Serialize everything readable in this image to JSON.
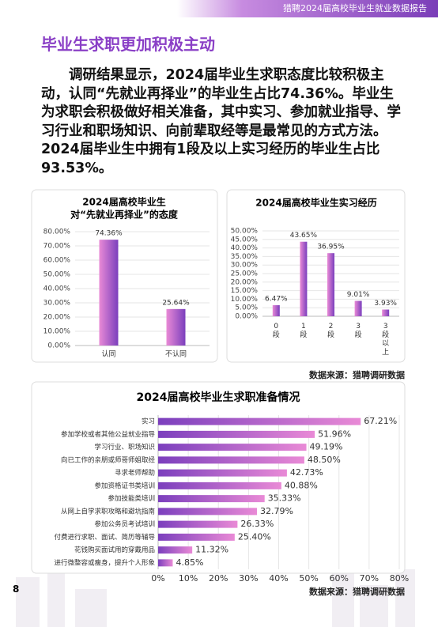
{
  "header": {
    "title": "猎聘2024届高校毕业生就业数据报告"
  },
  "section_title": "毕业生求职更加积极主动",
  "paragraph": "调研结果显示，2024届毕业生求职态度比较积极主动，认同“先就业再择业”的毕业生占比74.36%。毕业生为求职会积极做好相关准备，其中实习、参加就业指导、学习行业和职场知识、向前辈取经等是最常见的方式方法。2024届毕业生中拥有1段及以上实习经历的毕业生占比93.53%。",
  "sources": [
    "数据来源：猎聘调研数据",
    "数据来源：猎聘调研数据"
  ],
  "page_number": "8",
  "chart_data": [
    {
      "type": "bar",
      "title": "2024届高校毕业生",
      "subtitle": "对“先就业再择业”的态度",
      "categories": [
        "认同",
        "不认同"
      ],
      "values": [
        74.36,
        25.64
      ],
      "value_labels": [
        "74.36%",
        "25.64%"
      ],
      "gradient": [
        "#e98ad6",
        "#7b3fbd"
      ],
      "grid": true,
      "ylim": [
        0,
        80
      ],
      "yticks": [
        {
          "value": 0,
          "label": "0.00%"
        },
        {
          "value": 10,
          "label": "10.00%"
        },
        {
          "value": 20,
          "label": "20.00%"
        },
        {
          "value": 30,
          "label": "30.00%"
        },
        {
          "value": 40,
          "label": "40.00%"
        },
        {
          "value": 50,
          "label": "50.00%"
        },
        {
          "value": 60,
          "label": "60.00%"
        },
        {
          "value": 70,
          "label": "70.00%"
        },
        {
          "value": 80,
          "label": "80.00%"
        }
      ]
    },
    {
      "type": "bar",
      "title": "2024届高校毕业生实习经历",
      "categories": [
        "0段",
        "1段",
        "2段",
        "3段",
        "3段以上"
      ],
      "values": [
        6.47,
        43.65,
        36.95,
        9.01,
        3.93
      ],
      "value_labels": [
        "6.47%",
        "43.65%",
        "36.95%",
        "9.01%",
        "3.93%"
      ],
      "gradient": [
        "#e98ad6",
        "#7b3fbd"
      ],
      "grid": true,
      "ylim": [
        0,
        50
      ],
      "yticks": [
        {
          "value": 0,
          "label": "0.00%"
        },
        {
          "value": 5,
          "label": "5.00%"
        },
        {
          "value": 10,
          "label": "10.00%"
        },
        {
          "value": 15,
          "label": "15.00%"
        },
        {
          "value": 20,
          "label": "20.00%"
        },
        {
          "value": 25,
          "label": "25.00%"
        },
        {
          "value": 30,
          "label": "30.00%"
        },
        {
          "value": 35,
          "label": "35.00%"
        },
        {
          "value": 40,
          "label": "40.00%"
        },
        {
          "value": 45,
          "label": "45.00%"
        },
        {
          "value": 50,
          "label": "50.00%"
        }
      ]
    },
    {
      "type": "barh",
      "title": "2024届高校毕业生求职准备情况",
      "categories": [
        "实习",
        "参加学校或者其他公益就业指导",
        "学习行业、职场知识",
        "向已工作的亲朋或师哥师姐取经",
        "寻求老师帮助",
        "参加资格证书类培训",
        "参加技能类培训",
        "从网上自学求职攻略和避坑指南",
        "参加公务员考试培训",
        "付费进行求职、面试、简历等辅导",
        "花钱购买面试用的穿戴用品",
        "进行微整容或瘦身，提升个人形象"
      ],
      "values": [
        67.21,
        51.96,
        49.19,
        48.5,
        42.73,
        40.88,
        35.33,
        32.79,
        26.33,
        25.4,
        11.32,
        4.85
      ],
      "value_labels": [
        "67.21%",
        "51.96%",
        "49.19%",
        "48.50%",
        "42.73%",
        "40.88%",
        "35.33%",
        "32.79%",
        "26.33%",
        "25.40%",
        "11.32%",
        "4.85%"
      ],
      "gradient": [
        "#7b3fbd",
        "#e98ad6"
      ],
      "grid": true,
      "xlim": [
        0,
        80
      ],
      "xticks": [
        {
          "value": 0,
          "label": "0%"
        },
        {
          "value": 10,
          "label": "10%"
        },
        {
          "value": 20,
          "label": "20%"
        },
        {
          "value": 30,
          "label": "30%"
        },
        {
          "value": 40,
          "label": "40%"
        },
        {
          "value": 50,
          "label": "50%"
        },
        {
          "value": 60,
          "label": "60%"
        },
        {
          "value": 70,
          "label": "70%"
        },
        {
          "value": 80,
          "label": "80%"
        }
      ]
    }
  ]
}
